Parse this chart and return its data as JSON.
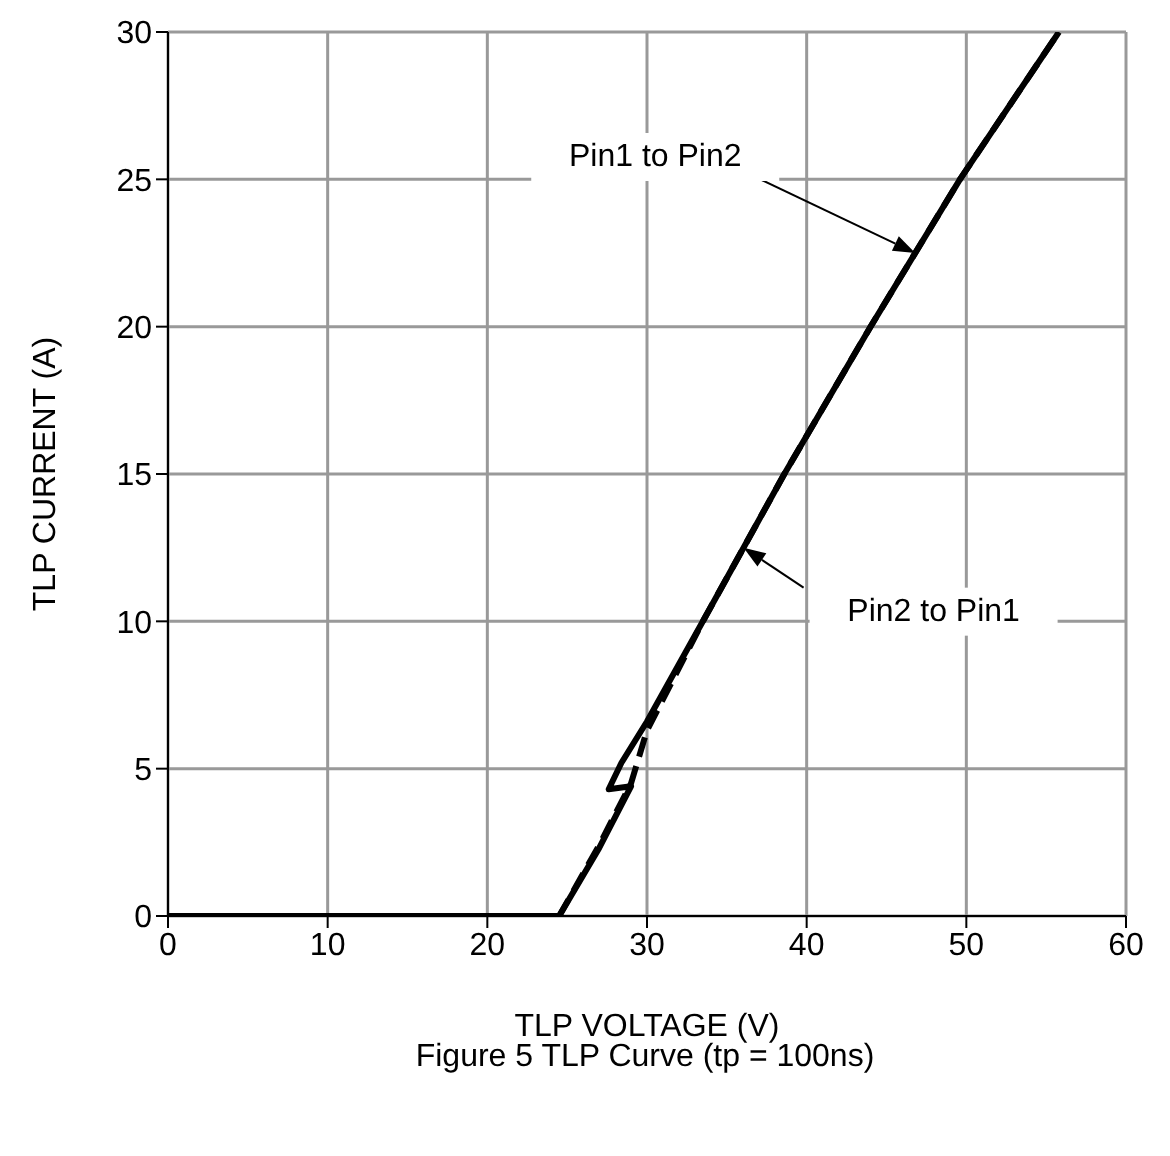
{
  "chart_data": {
    "type": "line",
    "xlabel": "TLP VOLTAGE (V)",
    "ylabel": "TLP CURRENT (A)",
    "xlim": [
      0,
      60
    ],
    "xticks": [
      0,
      10,
      20,
      30,
      40,
      50,
      60
    ],
    "ylim": [
      0,
      30
    ],
    "yticks": [
      0,
      5,
      10,
      15,
      20,
      25,
      30
    ],
    "grid": true,
    "marker": "none",
    "series": [
      {
        "color": "#000000",
        "line_style": "solid",
        "x": [
          0,
          24,
          24.5,
          27,
          29,
          27.6,
          28.4,
          30,
          33.5,
          38.6,
          44,
          49.6,
          55.8
        ],
        "values": [
          0,
          0,
          0,
          2.3,
          4.4,
          4.3,
          5.2,
          6.6,
          10,
          15,
          20,
          25,
          30
        ]
      },
      {
        "color": "#000000",
        "line_style": "dashed",
        "x": [
          0,
          24,
          24.5,
          27,
          29,
          30,
          33.5,
          38.6,
          44,
          49.6,
          55.8
        ],
        "values": [
          0,
          0,
          0,
          2.4,
          4.5,
          6.3,
          10,
          15,
          20,
          25,
          30
        ]
      }
    ],
    "annotations": [
      "Pin1 to Pin2",
      "Pin2 to Pin1",
      "Figure 5 TLP Curve (tp = 100ns)"
    ]
  }
}
